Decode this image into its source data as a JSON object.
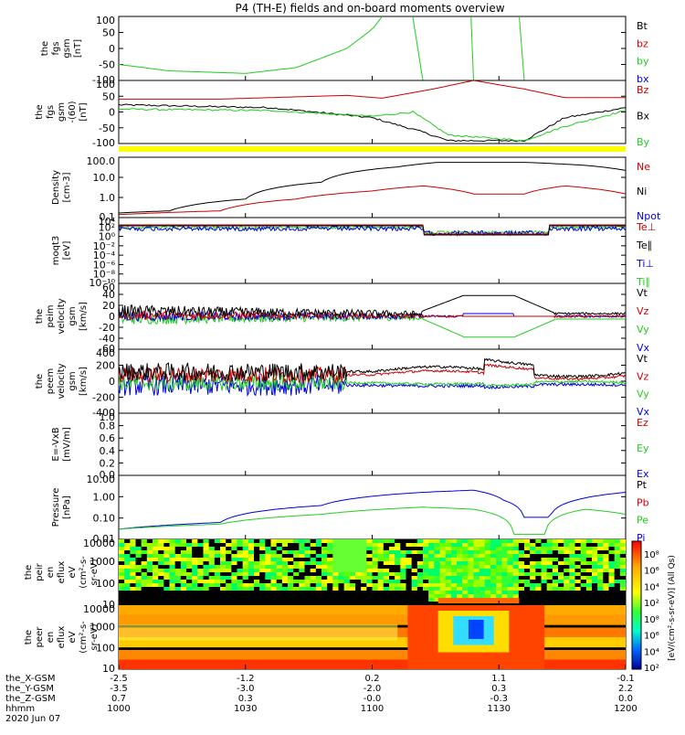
{
  "title": "P4 (TH-E) fields and on-board moments overview",
  "colors": {
    "black": "#000000",
    "red": "#cc0000",
    "green": "#22cc22",
    "blue": "#0000dd",
    "yellow": "#ffff00",
    "bg": "#ffffff"
  },
  "panels": [
    {
      "ylabel": [
        "the",
        "fgs",
        "gsm",
        "[nT]"
      ],
      "ticks": [
        "100",
        "50",
        "0",
        "-50",
        "-100"
      ],
      "legend": [
        {
          "text": "Bt",
          "color": "black"
        },
        {
          "text": "bz",
          "color": "red"
        },
        {
          "text": "by",
          "color": "green"
        },
        {
          "text": "bx",
          "color": "blue"
        }
      ]
    },
    {
      "ylabel": [
        "the",
        "fgs",
        "gsm",
        "-(60)",
        "[nT]"
      ],
      "ticks": [
        "100",
        "50",
        "0",
        "-50",
        "-100"
      ],
      "legend": [
        {
          "text": "Bz",
          "color": "red"
        },
        {
          "text": "Bx",
          "color": "black"
        },
        {
          "text": "By",
          "color": "green"
        }
      ]
    },
    {
      "ylabel": [
        "Density",
        "[cm-3]"
      ],
      "ticks": [
        "100.0",
        "10.0",
        "1.0",
        "0.1"
      ],
      "legend": [
        {
          "text": "Ne",
          "color": "red"
        },
        {
          "text": "Ni",
          "color": "black"
        },
        {
          "text": "Npot",
          "color": "blue"
        }
      ]
    },
    {
      "ylabel": [
        "moqt3",
        "[eV]"
      ],
      "ticks": [
        "10⁴",
        "10²",
        "10⁰",
        "10⁻²",
        "10⁻⁴",
        "10⁻⁶",
        "10⁻⁸",
        "10⁻¹⁰"
      ],
      "legend": [
        {
          "text": "Te⊥",
          "color": "red"
        },
        {
          "text": "Te∥",
          "color": "black"
        },
        {
          "text": "Ti⊥",
          "color": "blue"
        },
        {
          "text": "Ti∥",
          "color": "green"
        }
      ]
    },
    {
      "ylabel": [
        "the",
        "peim",
        "velocity",
        "gsm",
        "[km/s]"
      ],
      "ticks": [
        "60",
        "40",
        "20",
        "0",
        "-20",
        "-40",
        "-60"
      ],
      "legend": [
        {
          "text": "Vt",
          "color": "black"
        },
        {
          "text": "Vz",
          "color": "red"
        },
        {
          "text": "Vy",
          "color": "green"
        },
        {
          "text": "Vx",
          "color": "blue"
        }
      ]
    },
    {
      "ylabel": [
        "the",
        "peem",
        "velocity",
        "gsm",
        "[km/s]"
      ],
      "ticks": [
        "400",
        "200",
        "0",
        "-200",
        "-400"
      ],
      "legend": [
        {
          "text": "Vt",
          "color": "black"
        },
        {
          "text": "Vz",
          "color": "red"
        },
        {
          "text": "Vy",
          "color": "green"
        },
        {
          "text": "Vx",
          "color": "blue"
        }
      ]
    },
    {
      "ylabel": [
        "E=-VxB",
        "[mV/m]"
      ],
      "ticks": [
        "1.0",
        "0.8",
        "0.6",
        "0.4",
        "0.2",
        "0.0"
      ],
      "legend": [
        {
          "text": "Ez",
          "color": "red"
        },
        {
          "text": "Ey",
          "color": "green"
        },
        {
          "text": "Ex",
          "color": "blue"
        }
      ]
    },
    {
      "ylabel": [
        "Pressure",
        "[nPa]"
      ],
      "ticks": [
        "10.00",
        "1.00",
        "0.10",
        "0.01"
      ],
      "legend": [
        {
          "text": "Pt",
          "color": "black"
        },
        {
          "text": "Pb",
          "color": "red"
        },
        {
          "text": "Pe",
          "color": "green"
        },
        {
          "text": "Pi",
          "color": "blue"
        }
      ]
    },
    {
      "ylabel": [
        "the",
        "peir",
        "en",
        "eflux",
        "eV",
        "(cm²-s-",
        "sr-eV)"
      ],
      "ticks": [
        "10000",
        "1000",
        "100",
        "10"
      ]
    },
    {
      "ylabel": [
        "the",
        "peer",
        "en",
        "eflux",
        "eV",
        "(cm²-s-",
        "sr-eV)"
      ],
      "ticks": [
        "10000",
        "1000",
        "100",
        "10"
      ]
    }
  ],
  "colorbar": {
    "ticks": [
      "10⁸",
      "10⁶",
      "10⁴",
      "10²",
      "10⁸",
      "10⁶",
      "10⁴",
      "10²"
    ],
    "label": "[eV/(cm²-s-sr-eV)] (All Qs)"
  },
  "xaxis": {
    "rows": [
      {
        "label": "the_X-GSM",
        "values": [
          "-2.5",
          "-1.2",
          "0.2",
          "1.1",
          "-0.1"
        ]
      },
      {
        "label": "the_Y-GSM",
        "values": [
          "-3.5",
          "-3.0",
          "-2.0",
          "0.3",
          "2.2"
        ]
      },
      {
        "label": "the_Z-GSM",
        "values": [
          "0.7",
          "0.3",
          "-0.0",
          "-0.3",
          "0.0"
        ]
      },
      {
        "label": "hhmm",
        "values": [
          "1000",
          "1030",
          "1100",
          "1130",
          "1200"
        ]
      }
    ],
    "date": "2020 Jun 07"
  },
  "chart_data": {
    "type": "line",
    "title": "P4 (TH-E) fields and on-board moments overview",
    "x": [
      "1000",
      "1030",
      "1100",
      "1130",
      "1200"
    ],
    "xlabel": "hhmm",
    "date": "2020 Jun 07",
    "xlim": [
      "1000",
      "1200"
    ],
    "series": [
      {
        "name": "by",
        "panel": 1,
        "points": [
          [
            0,
            -50
          ],
          [
            0.1,
            -70
          ],
          [
            0.25,
            -78
          ],
          [
            0.35,
            -60
          ],
          [
            0.45,
            0
          ],
          [
            0.5,
            60
          ],
          [
            0.52,
            100
          ]
        ]
      },
      {
        "name": "Bz",
        "panel": 2,
        "points": [
          [
            0,
            35
          ],
          [
            0.2,
            35
          ],
          [
            0.45,
            48
          ],
          [
            0.52,
            38
          ],
          [
            0.62,
            70
          ],
          [
            0.7,
            100
          ],
          [
            0.8,
            70
          ],
          [
            0.88,
            40
          ],
          [
            1,
            40
          ]
        ]
      },
      {
        "name": "Bx",
        "panel": 2,
        "points": [
          [
            0,
            15
          ],
          [
            0.3,
            5
          ],
          [
            0.5,
            -30
          ],
          [
            0.6,
            -80
          ],
          [
            0.65,
            -110
          ],
          [
            0.8,
            -110
          ],
          [
            0.88,
            -30
          ],
          [
            1,
            5
          ]
        ]
      },
      {
        "name": "By",
        "panel": 2,
        "points": [
          [
            0,
            0
          ],
          [
            0.3,
            -5
          ],
          [
            0.5,
            -25
          ],
          [
            0.58,
            -10
          ],
          [
            0.65,
            -90
          ],
          [
            0.8,
            -110
          ],
          [
            0.88,
            -60
          ],
          [
            1,
            -5
          ]
        ]
      },
      {
        "name": "Ni",
        "panel": 3,
        "points": [
          [
            0,
            0.15
          ],
          [
            0.1,
            0.2
          ],
          [
            0.25,
            1
          ],
          [
            0.4,
            10
          ],
          [
            0.55,
            80
          ],
          [
            0.63,
            150
          ],
          [
            0.8,
            150
          ],
          [
            0.92,
            100
          ],
          [
            1,
            50
          ]
        ]
      },
      {
        "name": "Ne",
        "panel": 3,
        "points": [
          [
            0,
            0.12
          ],
          [
            0.2,
            0.2
          ],
          [
            0.35,
            1
          ],
          [
            0.5,
            3
          ],
          [
            0.6,
            6
          ],
          [
            0.7,
            2
          ],
          [
            0.8,
            2
          ],
          [
            0.88,
            6
          ],
          [
            1,
            2
          ]
        ]
      },
      {
        "name": "Pi",
        "panel": 8,
        "points": [
          [
            0,
            0.02
          ],
          [
            0.2,
            0.05
          ],
          [
            0.4,
            0.5
          ],
          [
            0.6,
            3
          ],
          [
            0.7,
            4
          ],
          [
            0.76,
            1
          ],
          [
            0.8,
            0.1
          ],
          [
            0.85,
            0.1
          ],
          [
            0.9,
            1
          ],
          [
            1,
            3
          ]
        ]
      },
      {
        "name": "Pe",
        "panel": 8,
        "points": [
          [
            0,
            0.02
          ],
          [
            0.2,
            0.04
          ],
          [
            0.4,
            0.15
          ],
          [
            0.6,
            0.4
          ],
          [
            0.7,
            0.3
          ],
          [
            0.78,
            0.01
          ],
          [
            0.84,
            0.01
          ],
          [
            0.92,
            0.3
          ],
          [
            1,
            0.15
          ]
        ]
      }
    ]
  }
}
